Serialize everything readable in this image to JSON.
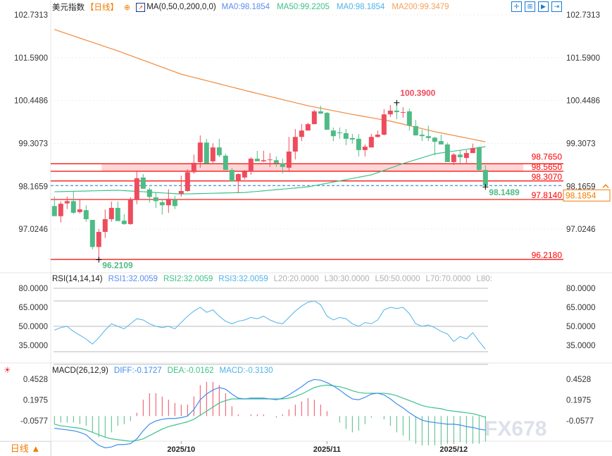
{
  "header": {
    "symbol": "美元指数",
    "period_tag": "【日线】",
    "ma_label": "MA(0,50,0,200,0,0)",
    "ma_values": [
      {
        "text": "MA0:98.1854",
        "color": "#5b8def"
      },
      {
        "text": "MA50:99.2205",
        "color": "#3cc28a"
      },
      {
        "text": "MA0:98.1854",
        "color": "#4fb3e8"
      },
      {
        "text": "MA200:99.3479",
        "color": "#f5a25d"
      }
    ],
    "toolbar_icons": [
      "crosshair-icon",
      "zoom-range-icon",
      "play-icon",
      "export-icon"
    ]
  },
  "footer": {
    "period_button": "日线 ▲",
    "watermark": "FX678"
  },
  "colors": {
    "up": "#ee4b5d",
    "down": "#4fbb86",
    "ma50": "#3cc28a",
    "ma200": "#f08a3c",
    "level": "#ff0000",
    "zone": "#ffd6d6",
    "current": "#1a7ad4",
    "current_box": "#f07d00"
  },
  "chart_data": [
    {
      "type": "candlestick",
      "title": "美元指数",
      "y_ticks": [
        "102.7313",
        "101.5900",
        "100.4486",
        "99.3073",
        "98.1659",
        "97.0246"
      ],
      "ylim": [
        95.9,
        102.7313
      ],
      "x_tick_labels": [
        {
          "label": "2025/10",
          "index": 20
        },
        {
          "label": "2025/11",
          "index": 43
        },
        {
          "label": "2025/12",
          "index": 63
        }
      ],
      "candles_ohlc": [
        [
          97.64,
          97.89,
          97.37,
          97.37
        ],
        [
          97.37,
          97.76,
          97.2,
          97.7
        ],
        [
          97.71,
          97.89,
          97.56,
          97.77
        ],
        [
          97.77,
          98.04,
          97.43,
          97.46
        ],
        [
          97.48,
          97.81,
          97.44,
          97.55
        ],
        [
          97.53,
          97.66,
          97.22,
          97.29
        ],
        [
          97.27,
          97.27,
          96.49,
          96.55
        ],
        [
          96.55,
          97.03,
          96.21,
          96.95
        ],
        [
          96.95,
          97.55,
          96.79,
          97.29
        ],
        [
          97.29,
          97.76,
          97.22,
          97.59
        ],
        [
          97.59,
          97.76,
          97.24,
          97.24
        ],
        [
          97.25,
          97.42,
          97.14,
          97.16
        ],
        [
          97.16,
          97.87,
          97.14,
          97.8
        ],
        [
          97.8,
          98.56,
          97.69,
          98.38
        ],
        [
          98.4,
          98.49,
          98.1,
          98.1
        ],
        [
          98.08,
          98.13,
          97.73,
          97.88
        ],
        [
          97.87,
          97.99,
          97.59,
          97.77
        ],
        [
          97.74,
          97.83,
          97.41,
          97.66
        ],
        [
          97.66,
          98.09,
          97.46,
          97.83
        ],
        [
          97.81,
          97.91,
          97.56,
          97.64
        ],
        [
          97.97,
          98.45,
          97.89,
          98.04
        ],
        [
          98.04,
          98.62,
          98.02,
          98.54
        ],
        [
          98.54,
          99.01,
          98.5,
          98.79
        ],
        [
          98.81,
          99.52,
          98.66,
          99.33
        ],
        [
          99.33,
          99.43,
          98.77,
          98.77
        ],
        [
          98.83,
          99.31,
          98.79,
          99.2
        ],
        [
          99.2,
          99.43,
          98.94,
          98.99
        ],
        [
          98.98,
          99.03,
          98.6,
          98.6
        ],
        [
          98.6,
          98.65,
          98.28,
          98.3
        ],
        [
          98.3,
          98.51,
          97.99,
          98.49
        ],
        [
          98.4,
          98.6,
          98.34,
          98.56
        ],
        [
          98.55,
          98.94,
          98.47,
          98.9
        ],
        [
          98.9,
          99.11,
          98.83,
          98.83
        ],
        [
          98.83,
          99.11,
          98.81,
          98.86
        ],
        [
          98.87,
          99.05,
          98.68,
          98.88
        ],
        [
          98.86,
          98.96,
          98.68,
          98.78
        ],
        [
          98.77,
          98.9,
          98.51,
          98.68
        ],
        [
          98.66,
          99.48,
          98.58,
          99.09
        ],
        [
          99.09,
          99.69,
          98.88,
          99.48
        ],
        [
          99.48,
          99.82,
          99.37,
          99.65
        ],
        [
          99.65,
          99.86,
          99.65,
          99.82
        ],
        [
          99.82,
          100.2,
          99.82,
          100.16
        ],
        [
          100.16,
          100.31,
          100.1,
          100.1
        ],
        [
          100.12,
          100.14,
          99.67,
          99.67
        ],
        [
          99.65,
          99.73,
          99.37,
          99.5
        ],
        [
          99.6,
          99.73,
          99.43,
          99.58
        ],
        [
          99.58,
          99.69,
          99.26,
          99.43
        ],
        [
          99.45,
          99.56,
          99.3,
          99.41
        ],
        [
          99.43,
          99.56,
          98.96,
          99.13
        ],
        [
          99.13,
          99.28,
          98.96,
          99.22
        ],
        [
          99.2,
          99.56,
          99.2,
          99.48
        ],
        [
          99.48,
          99.65,
          99.46,
          99.54
        ],
        [
          99.54,
          100.22,
          99.52,
          100.08
        ],
        [
          100.08,
          100.33,
          100.01,
          100.18
        ],
        [
          100.18,
          100.39,
          99.95,
          100.14
        ],
        [
          100.14,
          100.27,
          99.99,
          100.14
        ],
        [
          100.16,
          100.23,
          99.65,
          99.78
        ],
        [
          99.77,
          99.93,
          99.52,
          99.52
        ],
        [
          99.54,
          99.67,
          99.37,
          99.5
        ],
        [
          99.5,
          99.78,
          99.37,
          99.45
        ],
        [
          99.46,
          99.48,
          98.99,
          99.35
        ],
        [
          99.37,
          99.54,
          99.28,
          99.28
        ],
        [
          99.28,
          99.33,
          98.81,
          98.81
        ],
        [
          98.81,
          99.05,
          98.73,
          99.01
        ],
        [
          99.01,
          99.11,
          98.77,
          98.94
        ],
        [
          98.92,
          99.13,
          98.75,
          99.05
        ],
        [
          99.05,
          99.3,
          99.05,
          99.18
        ],
        [
          99.2,
          99.22,
          98.55,
          98.6
        ],
        [
          98.6,
          98.73,
          98.1489,
          98.1854
        ]
      ],
      "ma200_points": [
        [
          0,
          102.34
        ],
        [
          10,
          101.77
        ],
        [
          20,
          101.15
        ],
        [
          30,
          100.72
        ],
        [
          40,
          100.31
        ],
        [
          47,
          100.08
        ],
        [
          53,
          99.9
        ],
        [
          60,
          99.62
        ],
        [
          68,
          99.35
        ]
      ],
      "ma50_points": [
        [
          0,
          98.02
        ],
        [
          10,
          98.06
        ],
        [
          20,
          97.96
        ],
        [
          30,
          98.0
        ],
        [
          40,
          98.15
        ],
        [
          50,
          98.47
        ],
        [
          55,
          98.77
        ],
        [
          60,
          99.03
        ],
        [
          68,
          99.22
        ]
      ],
      "levels": [
        {
          "label": "98.7650",
          "value": 98.765
        },
        {
          "label": "98.5650",
          "value": 98.565
        },
        {
          "label": "98.3070",
          "value": 98.307
        },
        {
          "label": "97.8140",
          "value": 97.814
        },
        {
          "label": "96.2180",
          "value": 96.218
        }
      ],
      "zone": {
        "from": 98.565,
        "to": 98.765,
        "start_index": 8
      },
      "annotations": [
        {
          "label": "100.3900",
          "value": 100.39,
          "index": 54,
          "color": "#ee4b5d"
        },
        {
          "label": "96.2109",
          "value": 96.2109,
          "index": 7,
          "color": "#4fbb86"
        },
        {
          "label": "98.1489",
          "value": 98.1489,
          "index": 68,
          "color": "#4fbb86"
        }
      ],
      "current_price": {
        "label": "98.1854",
        "value": 98.1854
      }
    },
    {
      "type": "line",
      "title": "RSI(14,14,14)",
      "legend": [
        {
          "text": "RSI1:32.0059",
          "color": "#5b8def"
        },
        {
          "text": "RSI2:32.0059",
          "color": "#3cc28a"
        },
        {
          "text": "RSI3:32.0059",
          "color": "#4fb3e8"
        },
        {
          "text": "L20:20.0000",
          "color": "#b0b0b0"
        },
        {
          "text": "L30:30.0000",
          "color": "#b0b0b0"
        },
        {
          "text": "L50:50.0000",
          "color": "#b0b0b0"
        },
        {
          "text": "L70:70.0000",
          "color": "#b0b0b0"
        },
        {
          "text": "L80:",
          "color": "#b0b0b0"
        }
      ],
      "y_ticks": [
        "80.0000",
        "65.0000",
        "50.0000",
        "35.0000"
      ],
      "ylim": [
        18,
        82
      ],
      "reference_lines": [
        20,
        30,
        50,
        70,
        80
      ],
      "values": [
        47,
        49,
        50,
        46,
        43,
        40,
        36,
        41,
        47,
        52,
        50,
        48,
        52,
        56,
        55,
        52,
        50,
        49,
        50,
        48,
        53,
        58,
        62,
        65,
        61,
        63,
        58,
        54,
        52,
        54,
        55,
        57,
        56,
        58,
        55,
        53,
        52,
        57,
        62,
        66,
        69,
        70,
        67,
        58,
        55,
        57,
        56,
        52,
        50,
        53,
        52,
        55,
        63,
        65,
        64,
        65,
        60,
        52,
        50,
        51,
        49,
        46,
        44,
        38,
        42,
        40,
        45,
        38,
        32
      ]
    },
    {
      "type": "line",
      "title": "MACD(26,12,9)",
      "legend": [
        {
          "text": "DIFF:-0.1727",
          "color": "#3d8ef0"
        },
        {
          "text": "DEA:-0.0162",
          "color": "#3cc28a"
        },
        {
          "text": "MACD:-0.3130",
          "color": "#4fb3e8"
        }
      ],
      "y_ticks": [
        "0.4528",
        "0.1975",
        "-0.0577"
      ],
      "ylim": [
        -0.46,
        0.56
      ],
      "diff": [
        -0.15,
        -0.16,
        -0.17,
        -0.18,
        -0.2,
        -0.23,
        -0.3,
        -0.36,
        -0.39,
        -0.38,
        -0.35,
        -0.35,
        -0.34,
        -0.28,
        -0.18,
        -0.1,
        -0.06,
        -0.04,
        -0.03,
        -0.03,
        -0.02,
        0.0,
        0.08,
        0.2,
        0.27,
        0.32,
        0.35,
        0.33,
        0.27,
        0.22,
        0.21,
        0.22,
        0.22,
        0.22,
        0.21,
        0.2,
        0.22,
        0.26,
        0.31,
        0.36,
        0.42,
        0.45,
        0.44,
        0.41,
        0.37,
        0.32,
        0.26,
        0.21,
        0.2,
        0.23,
        0.27,
        0.28,
        0.26,
        0.21,
        0.15,
        0.1,
        0.04,
        -0.01,
        -0.05,
        -0.07,
        -0.08,
        -0.09,
        -0.1,
        -0.1,
        -0.11,
        -0.13,
        -0.14,
        -0.16,
        -0.1727
      ],
      "dea": [
        -0.1,
        -0.12,
        -0.13,
        -0.14,
        -0.15,
        -0.17,
        -0.2,
        -0.23,
        -0.26,
        -0.28,
        -0.29,
        -0.3,
        -0.31,
        -0.3,
        -0.28,
        -0.24,
        -0.2,
        -0.16,
        -0.13,
        -0.11,
        -0.09,
        -0.07,
        -0.04,
        0.01,
        0.06,
        0.11,
        0.16,
        0.19,
        0.21,
        0.21,
        0.21,
        0.21,
        0.21,
        0.21,
        0.21,
        0.21,
        0.21,
        0.22,
        0.24,
        0.27,
        0.31,
        0.35,
        0.37,
        0.38,
        0.37,
        0.36,
        0.34,
        0.31,
        0.29,
        0.28,
        0.28,
        0.28,
        0.28,
        0.27,
        0.25,
        0.22,
        0.19,
        0.16,
        0.13,
        0.11,
        0.1,
        0.09,
        0.07,
        0.06,
        0.05,
        0.04,
        0.03,
        0.01,
        -0.0162
      ]
    }
  ]
}
